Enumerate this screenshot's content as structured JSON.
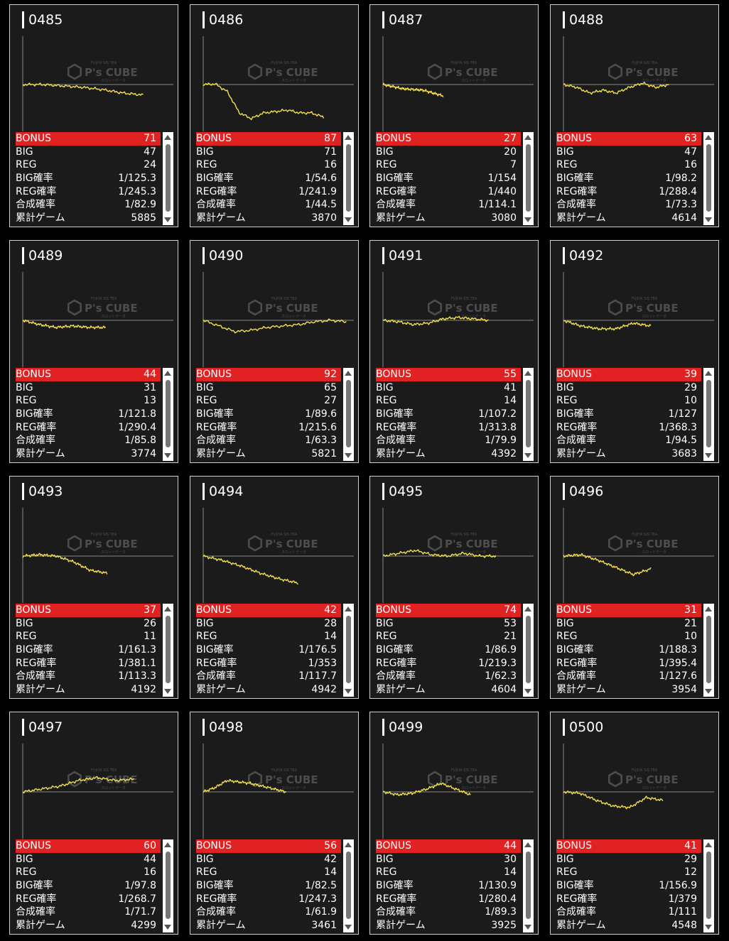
{
  "labels": {
    "bonus": "BONUS",
    "big": "BIG",
    "reg": "REG",
    "big_rate": "BIG確率",
    "reg_rate": "REG確率",
    "total_rate": "合成確率",
    "total_games": "累計ゲーム"
  },
  "watermark": {
    "brand": "P's CUBE",
    "tagline": "FUJIYA SIS TEA",
    "sub": "スロットデータ"
  },
  "colors": {
    "bonus_bar": "#e12222",
    "graph_line": "#f4e04d",
    "card_bg": "#1b1b1b",
    "card_border": "#cfcfcf"
  },
  "machines": [
    {
      "id": "0485",
      "bonus": "71",
      "big": "47",
      "reg": "24",
      "big_rate": "1/125.3",
      "reg_rate": "1/245.3",
      "total_rate": "1/82.9",
      "total_games": "5885",
      "trend": [
        0,
        0,
        50,
        100,
        180,
        300,
        370
      ],
      "graph_end": 0.8
    },
    {
      "id": "0486",
      "bonus": "87",
      "big": "71",
      "reg": "16",
      "big_rate": "1/54.6",
      "reg_rate": "1/241.9",
      "total_rate": "1/44.5",
      "total_games": "3870",
      "trend": [
        0,
        -20,
        250,
        1000,
        1200,
        1000,
        950,
        900,
        1000,
        1000,
        1150
      ],
      "graph_end": 0.8
    },
    {
      "id": "0487",
      "bonus": "27",
      "big": "20",
      "reg": "7",
      "big_rate": "1/154",
      "reg_rate": "1/440",
      "total_rate": "1/114.1",
      "total_games": "3080",
      "trend": [
        0,
        150,
        200,
        400
      ],
      "graph_end": 0.4
    },
    {
      "id": "0488",
      "bonus": "63",
      "big": "47",
      "reg": "16",
      "big_rate": "1/98.2",
      "reg_rate": "1/288.4",
      "total_rate": "1/73.3",
      "total_games": "4614",
      "trend": [
        0,
        100,
        300,
        200,
        300,
        100,
        -50,
        100,
        0
      ],
      "graph_end": 0.7
    },
    {
      "id": "0489",
      "bonus": "44",
      "big": "31",
      "reg": "13",
      "big_rate": "1/121.8",
      "reg_rate": "1/290.4",
      "total_rate": "1/85.8",
      "total_games": "3774",
      "trend": [
        0,
        150,
        250,
        200,
        250,
        250
      ],
      "graph_end": 0.55
    },
    {
      "id": "0490",
      "bonus": "92",
      "big": "65",
      "reg": "27",
      "big_rate": "1/89.6",
      "reg_rate": "1/215.6",
      "total_rate": "1/63.3",
      "total_games": "5821",
      "trend": [
        0,
        200,
        400,
        350,
        250,
        200,
        150,
        50,
        0,
        50
      ],
      "graph_end": 0.95
    },
    {
      "id": "0491",
      "bonus": "55",
      "big": "41",
      "reg": "14",
      "big_rate": "1/107.2",
      "reg_rate": "1/313.8",
      "total_rate": "1/79.9",
      "total_games": "4392",
      "trend": [
        0,
        50,
        150,
        100,
        -50,
        -100,
        -50,
        0
      ],
      "graph_end": 0.7
    },
    {
      "id": "0492",
      "bonus": "39",
      "big": "29",
      "reg": "10",
      "big_rate": "1/127",
      "reg_rate": "1/368.3",
      "total_rate": "1/94.5",
      "total_games": "3683",
      "trend": [
        0,
        200,
        300,
        300,
        100,
        200
      ],
      "graph_end": 0.58
    },
    {
      "id": "0493",
      "bonus": "37",
      "big": "26",
      "reg": "11",
      "big_rate": "1/161.3",
      "reg_rate": "1/381.1",
      "total_rate": "1/113.3",
      "total_games": "4192",
      "trend": [
        0,
        -50,
        0,
        200,
        500,
        600
      ],
      "graph_end": 0.56
    },
    {
      "id": "0494",
      "bonus": "42",
      "big": "28",
      "reg": "14",
      "big_rate": "1/176.5",
      "reg_rate": "1/353",
      "total_rate": "1/117.7",
      "total_games": "4942",
      "trend": [
        0,
        150,
        350,
        600,
        800,
        950
      ],
      "graph_end": 0.63
    },
    {
      "id": "0495",
      "bonus": "74",
      "big": "53",
      "reg": "21",
      "big_rate": "1/86.9",
      "reg_rate": "1/219.3",
      "total_rate": "1/62.3",
      "total_games": "4604",
      "trend": [
        0,
        -100,
        -200,
        -50,
        0,
        -100,
        0,
        0
      ],
      "graph_end": 0.75
    },
    {
      "id": "0496",
      "bonus": "31",
      "big": "21",
      "reg": "10",
      "big_rate": "1/188.3",
      "reg_rate": "1/395.4",
      "total_rate": "1/127.6",
      "total_games": "3954",
      "trend": [
        0,
        -50,
        150,
        400,
        650,
        450
      ],
      "graph_end": 0.58
    },
    {
      "id": "0497",
      "bonus": "60",
      "big": "44",
      "reg": "16",
      "big_rate": "1/97.8",
      "reg_rate": "1/268.7",
      "total_rate": "1/71.7",
      "total_games": "4299",
      "trend": [
        0,
        -100,
        -200,
        -400,
        -500,
        -400,
        -450
      ],
      "graph_end": 0.74
    },
    {
      "id": "0498",
      "bonus": "56",
      "big": "42",
      "reg": "14",
      "big_rate": "1/82.5",
      "reg_rate": "1/247.3",
      "total_rate": "1/61.9",
      "total_games": "3461",
      "trend": [
        0,
        -150,
        -400,
        -350,
        -300,
        -200,
        -100,
        0
      ],
      "graph_end": 0.55
    },
    {
      "id": "0499",
      "bonus": "44",
      "big": "30",
      "reg": "14",
      "big_rate": "1/130.9",
      "reg_rate": "1/280.4",
      "total_rate": "1/89.3",
      "total_games": "3925",
      "trend": [
        0,
        100,
        50,
        -100,
        -300,
        -100,
        100
      ],
      "graph_end": 0.58
    },
    {
      "id": "0500",
      "bonus": "41",
      "big": "29",
      "reg": "12",
      "big_rate": "1/156.9",
      "reg_rate": "1/379",
      "total_rate": "1/111",
      "total_games": "4548",
      "trend": [
        0,
        50,
        300,
        500,
        550,
        200,
        300
      ],
      "graph_end": 0.66
    }
  ]
}
